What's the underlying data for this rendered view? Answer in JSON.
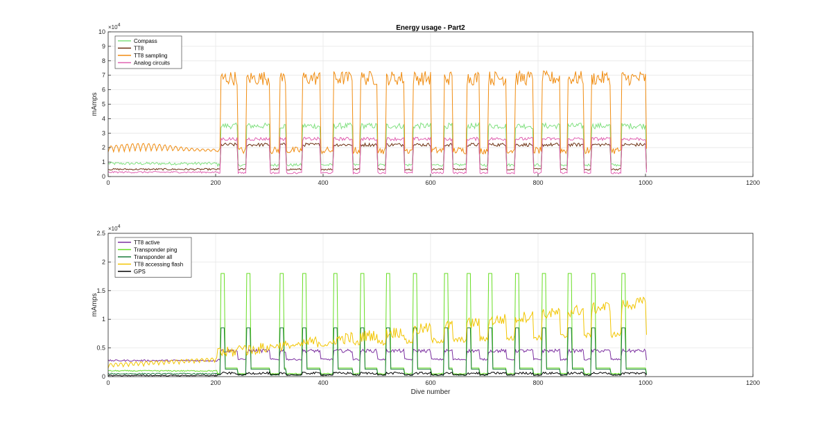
{
  "chart_data": [
    {
      "type": "line",
      "title": "Energy usage - Part2",
      "xlabel": "",
      "ylabel": "mAmps",
      "xlim": [
        0,
        1200
      ],
      "ylim": [
        0,
        10
      ],
      "y_multiplier_label": "×10",
      "y_multiplier_exp": "4",
      "xticks": [
        "0",
        "200",
        "400",
        "600",
        "800",
        "1000",
        "1200"
      ],
      "xtick_values": [
        0,
        200,
        400,
        600,
        800,
        1000,
        1200
      ],
      "yticks": [
        "0",
        "1",
        "2",
        "3",
        "4",
        "5",
        "6",
        "7",
        "8",
        "9",
        "10"
      ],
      "ytick_values": [
        0,
        1,
        2,
        3,
        4,
        5,
        6,
        7,
        8,
        9,
        10
      ],
      "grid": true,
      "legend_position": "top-left",
      "x_range": [
        0,
        1002
      ],
      "pattern": {
        "baseline_end": 203,
        "cycle_starts": [
          210,
          258,
          320,
          362,
          420,
          470,
          518,
          568,
          625,
          668,
          708,
          758,
          808,
          855,
          900,
          955
        ],
        "cycle_ends": [
          240,
          300,
          330,
          395,
          455,
          500,
          550,
          600,
          640,
          690,
          740,
          790,
          840,
          885,
          935,
          1000
        ]
      },
      "series": [
        {
          "name": "Compass",
          "color": "#7fe07f",
          "baseline_level": 0.9,
          "high_level": 3.5,
          "low_level": 0.8,
          "noise": 0.2
        },
        {
          "name": "TT8",
          "color": "#6b2e0f",
          "baseline_level": 0.5,
          "high_level": 2.2,
          "low_level": 0.5,
          "noise": 0.12
        },
        {
          "name": "TT8 sampling",
          "color": "#f08c10",
          "baseline_level": 1.7,
          "high_level": 6.8,
          "low_level": 1.8,
          "noise": 0.5
        },
        {
          "name": "Analog circuits",
          "color": "#e060b0",
          "baseline_level": 0.3,
          "high_level": 2.6,
          "low_level": 0.25,
          "noise": 0.12
        }
      ]
    },
    {
      "type": "line",
      "title": "",
      "xlabel": "Dive number",
      "ylabel": "mAmps",
      "xlim": [
        0,
        1200
      ],
      "ylim": [
        0,
        2.5
      ],
      "y_multiplier_label": "×10",
      "y_multiplier_exp": "4",
      "xticks": [
        "0",
        "200",
        "400",
        "600",
        "800",
        "1000",
        "1200"
      ],
      "xtick_values": [
        0,
        200,
        400,
        600,
        800,
        1000,
        1200
      ],
      "yticks": [
        "0",
        "0.5",
        "1",
        "1.5",
        "2",
        "2.5"
      ],
      "ytick_values": [
        0,
        0.5,
        1,
        1.5,
        2,
        2.5
      ],
      "grid": true,
      "legend_position": "top-left",
      "x_range": [
        0,
        1002
      ],
      "series": [
        {
          "name": "TT8 active",
          "color": "#7b2fa0",
          "baseline_level": 0.28,
          "high_level": 0.45,
          "low_level": 0.3,
          "noise": 0.03
        },
        {
          "name": "Transponder ping",
          "color": "#66dd22",
          "baseline_level": 0.1,
          "high_level": 1.8,
          "low_level": 0.05,
          "noise": 0.02
        },
        {
          "name": "Transponder all",
          "color": "#1a7a3a",
          "baseline_level": 0.05,
          "high_level": 0.85,
          "low_level": 0.03,
          "noise": 0.02
        },
        {
          "name": "TT8 accessing flash",
          "color": "#f2c500",
          "baseline_level": 0.15,
          "high_level": 1.5,
          "low_level": 0.5,
          "noise": 0.1
        },
        {
          "name": "GPS",
          "color": "#000000",
          "baseline_level": 0.02,
          "high_level": 0.06,
          "low_level": 0.03,
          "noise": 0.02
        }
      ]
    }
  ]
}
